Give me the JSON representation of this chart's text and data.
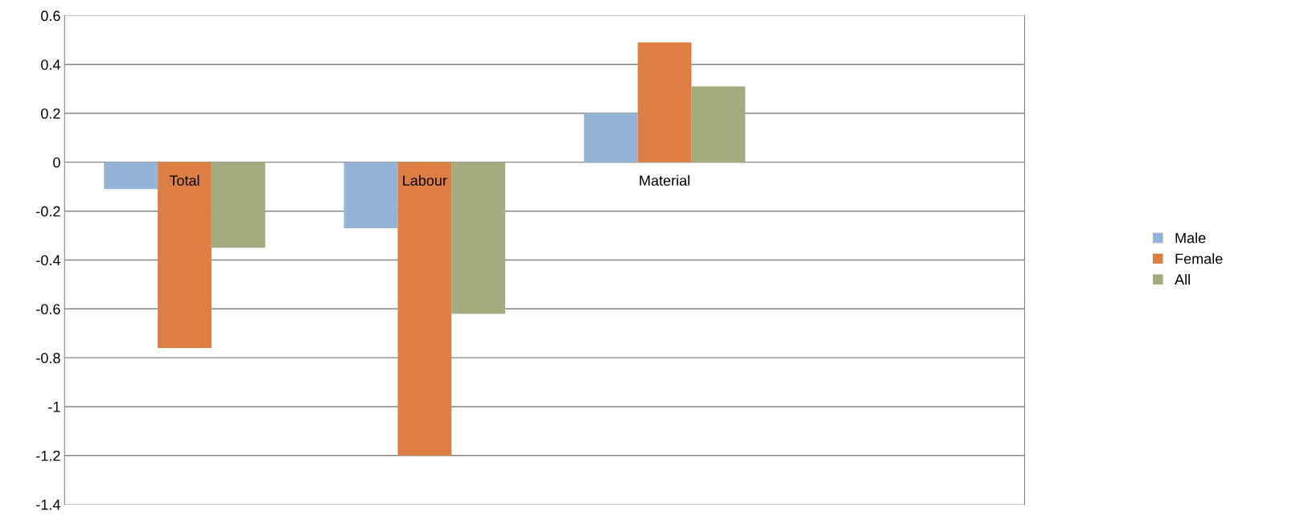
{
  "chart_data": {
    "type": "bar",
    "categories": [
      "Total",
      "Labour",
      "Material",
      null
    ],
    "series": [
      {
        "name": "Male",
        "color": "#95b3d7",
        "values": [
          -0.11,
          -0.27,
          0.2,
          null
        ]
      },
      {
        "name": "Female",
        "color": "#dd7f45",
        "values": [
          -0.76,
          -1.2,
          0.49,
          null
        ]
      },
      {
        "name": "All",
        "color": "#a4ab7e",
        "values": [
          -0.35,
          -0.62,
          0.31,
          null
        ]
      }
    ],
    "ylim": [
      -1.4,
      0.6
    ],
    "yticks": [
      -1.4,
      -1.2,
      -1,
      -0.8,
      -0.6,
      -0.4,
      -0.2,
      0,
      0.2,
      0.4,
      0.6
    ],
    "grid": "y",
    "legend": "right"
  }
}
